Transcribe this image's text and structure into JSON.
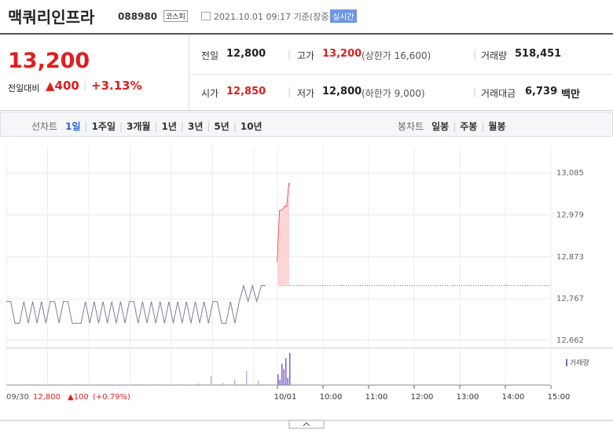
{
  "header": {
    "name": "맥쿼리인프라",
    "code": "088980",
    "market": "코스피",
    "timestamp": "2021.10.01 09:17 기준(장중)",
    "realtime": "실시간"
  },
  "quote": {
    "price": "13,200",
    "change_label": "전일대비",
    "change": "▲400",
    "change_rate": "+3.13%"
  },
  "table": {
    "rows": [
      [
        {
          "label": "전일",
          "value": "12,800"
        },
        {
          "label": "고가",
          "value": "13,200",
          "note": "(상한가 16,600)"
        },
        {
          "label": "거래량",
          "value": "518,451"
        }
      ],
      [
        {
          "label": "시가",
          "value": "12,850"
        },
        {
          "label": "저가",
          "value": "12,800",
          "note": "(하한가 9,000)"
        },
        {
          "label": "거래대금",
          "value": "6,739",
          "unit": "백만"
        }
      ]
    ]
  },
  "tabs": {
    "line_label": "선차트",
    "line": [
      "1일",
      "1주일",
      "3개월",
      "1년",
      "3년",
      "5년",
      "10년"
    ],
    "candle_label": "봉차트",
    "candle": [
      "일봉",
      "주봉",
      "월봉"
    ]
  },
  "chart": {
    "type": "line",
    "ylim": [
      12648,
      13153
    ],
    "yticks": [
      {
        "value": 13085,
        "label": "13,085"
      },
      {
        "value": 12979,
        "label": "12,979"
      },
      {
        "value": 12873,
        "label": "12,873"
      },
      {
        "value": 12767,
        "label": "12,767"
      },
      {
        "value": 12662,
        "label": "12,662"
      }
    ],
    "xticks": [
      "10/01",
      "10:00",
      "11:00",
      "12:00",
      "13:00",
      "14:00",
      "15:00"
    ],
    "prev_close": 12800,
    "prev_date": "09/30",
    "prev_close_label": "12,800",
    "prev_change": "▲100",
    "prev_rate": "(+0.79%)",
    "volume_label": "거래량",
    "prev_day": {
      "color": "#7a7f95",
      "values": [
        12760,
        12760,
        12705,
        12705,
        12760,
        12705,
        12760,
        12705,
        12760,
        12705,
        12760,
        12760,
        12705,
        12760,
        12760,
        12705,
        12705,
        12705,
        12760,
        12705,
        12760,
        12705,
        12760,
        12705,
        12760,
        12705,
        12760,
        12705,
        12760,
        12760,
        12705,
        12760,
        12705,
        12760,
        12705,
        12760,
        12705,
        12760,
        12705,
        12760,
        12705,
        12760,
        12705,
        12760,
        12705,
        12760,
        12705,
        12760,
        12760,
        12705,
        12705,
        12760,
        12705,
        12760,
        12800,
        12760,
        12800,
        12760,
        12800,
        12800
      ]
    },
    "today": {
      "color": "#e8383d",
      "values": [
        12860,
        12990,
        12990,
        13000,
        13000,
        13060
      ]
    },
    "prev_volume": {
      "color": "#b9aed3",
      "values": [
        200,
        100,
        300,
        150,
        100,
        200,
        120,
        180,
        100,
        250,
        120,
        400,
        150,
        200,
        300,
        250,
        900,
        5000,
        1200,
        3000,
        8000,
        2500
      ]
    },
    "today_volume": {
      "color": "#7b61c9",
      "values": [
        6000,
        3000,
        12000,
        9000,
        15000,
        4000,
        18000
      ]
    }
  }
}
